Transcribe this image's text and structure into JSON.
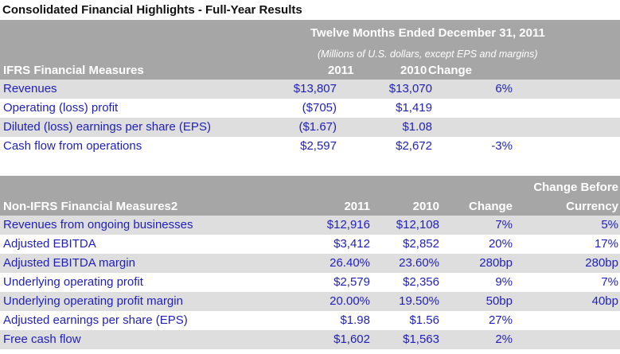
{
  "title": "Consolidated Financial Highlights - Full-Year Results",
  "ifrs": {
    "period": "Twelve Months Ended December 31, 2011",
    "units": "(Millions of U.S. dollars, except EPS and margins)",
    "section_label": "IFRS Financial Measures",
    "col_2011": "2011",
    "col_2010": "2010",
    "col_change": "Change",
    "rows": [
      {
        "label": "Revenues",
        "v2011": "$13,807",
        "v2010": "$13,070",
        "change": "6%"
      },
      {
        "label": "Operating (loss) profit",
        "v2011": "($705)",
        "v2010": "$1,419",
        "change": ""
      },
      {
        "label": "Diluted (loss) earnings per share (EPS)",
        "v2011": "($1.67)",
        "v2010": "$1.08",
        "change": ""
      },
      {
        "label": "Cash flow from operations",
        "v2011": "$2,597",
        "v2010": "$2,672",
        "change": "-3%"
      }
    ]
  },
  "non_ifrs": {
    "section_label": "Non-IFRS Financial Measures2",
    "col_2011": "2011",
    "col_2010": "2010",
    "col_change": "Change",
    "col_cbc_line1": "Change Before",
    "col_cbc_line2": "Currency",
    "rows": [
      {
        "label": "Revenues from ongoing businesses",
        "v2011": "$12,916",
        "v2010": "$12,108",
        "change": "7%",
        "cbc": "5%"
      },
      {
        "label": "Adjusted EBITDA",
        "v2011": "$3,412",
        "v2010": "$2,852",
        "change": "20%",
        "cbc": "17%"
      },
      {
        "label": "Adjusted EBITDA margin",
        "v2011": "26.40%",
        "v2010": "23.60%",
        "change": "280bp",
        "cbc": "280bp"
      },
      {
        "label": "Underlying operating profit",
        "v2011": "$2,579",
        "v2010": "$2,356",
        "change": "9%",
        "cbc": "7%"
      },
      {
        "label": "Underlying operating profit margin",
        "v2011": "20.00%",
        "v2010": "19.50%",
        "change": "50bp",
        "cbc": "40bp"
      },
      {
        "label": "Adjusted earnings per share (EPS)",
        "v2011": "$1.98",
        "v2010": "$1.56",
        "change": "27%",
        "cbc": ""
      },
      {
        "label": "Free cash flow",
        "v2011": "$1,602",
        "v2010": "$1,563",
        "change": "2%",
        "cbc": ""
      }
    ]
  }
}
